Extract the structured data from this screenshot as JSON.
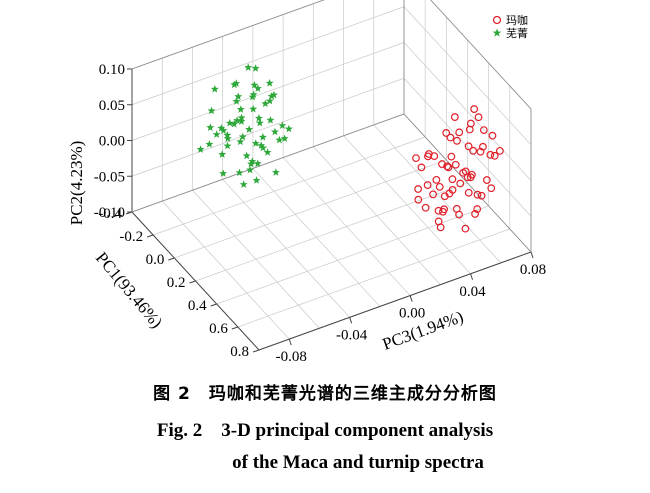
{
  "chart_data": {
    "type": "scatter",
    "dimensions": 3,
    "axes": {
      "pc1": {
        "label": "PC1(93.46%)",
        "range": [
          -0.4,
          0.8
        ],
        "ticks": [
          "-0.4",
          "-0.2",
          "0.0",
          "0.2",
          "0.4",
          "0.6",
          "0.8"
        ]
      },
      "pc2": {
        "label": "PC2(4.23%)",
        "range": [
          -0.1,
          0.1
        ],
        "ticks": [
          "-0.10",
          "-0.05",
          "0.00",
          "0.05",
          "0.10"
        ]
      },
      "pc3": {
        "label": "PC3(1.94%)",
        "range": [
          -0.1,
          0.08
        ],
        "ticks": [
          "-0.08",
          "-0.04",
          "0.00",
          "0.04",
          "0.08"
        ]
      }
    },
    "grid": true,
    "legend_position": "top-right",
    "series": [
      {
        "name": "玛咖",
        "marker": "circle-open",
        "color": "#e0202a",
        "points": [
          [
            0.55,
            0.02,
            0.025
          ],
          [
            0.62,
            0.01,
            0.03
          ],
          [
            0.58,
            -0.01,
            0.035
          ],
          [
            0.66,
            0.03,
            0.04
          ],
          [
            0.6,
            0.05,
            0.045
          ],
          [
            0.7,
            0.0,
            0.03
          ],
          [
            0.52,
            -0.03,
            0.025
          ],
          [
            0.64,
            -0.02,
            0.05
          ],
          [
            0.68,
            0.04,
            0.055
          ],
          [
            0.57,
            0.06,
            0.04
          ],
          [
            0.73,
            0.02,
            0.045
          ],
          [
            0.61,
            -0.04,
            0.035
          ],
          [
            0.59,
            0.0,
            0.02
          ],
          [
            0.65,
            0.07,
            0.05
          ],
          [
            0.71,
            -0.01,
            0.06
          ],
          [
            0.54,
            0.03,
            0.03
          ],
          [
            0.63,
            0.02,
            0.065
          ],
          [
            0.67,
            -0.03,
            0.04
          ],
          [
            0.6,
            0.04,
            0.03
          ],
          [
            0.56,
            -0.02,
            0.05
          ],
          [
            0.69,
            0.05,
            0.035
          ],
          [
            0.62,
            -0.05,
            0.045
          ],
          [
            0.74,
            0.01,
            0.055
          ],
          [
            0.58,
            0.08,
            0.045
          ],
          [
            0.66,
            0.0,
            0.025
          ],
          [
            0.53,
            0.01,
            0.04
          ],
          [
            0.64,
            0.06,
            0.06
          ],
          [
            0.7,
            -0.04,
            0.05
          ],
          [
            0.61,
            0.03,
            0.055
          ],
          [
            0.57,
            -0.06,
            0.035
          ],
          [
            0.68,
            0.02,
            0.02
          ],
          [
            0.72,
            0.04,
            0.065
          ],
          [
            0.55,
            0.05,
            0.05
          ],
          [
            0.63,
            -0.01,
            0.04
          ],
          [
            0.59,
            0.07,
            0.06
          ],
          [
            0.66,
            -0.05,
            0.03
          ],
          [
            0.6,
            0.01,
            0.07
          ],
          [
            0.65,
            0.03,
            0.035
          ],
          [
            0.71,
            0.06,
            0.045
          ],
          [
            0.58,
            -0.04,
            0.06
          ],
          [
            0.52,
            0.0,
            0.045
          ],
          [
            0.67,
            0.01,
            0.05
          ],
          [
            0.62,
            0.05,
            0.025
          ],
          [
            0.69,
            -0.02,
            0.055
          ],
          [
            0.56,
            0.02,
            0.065
          ],
          [
            0.64,
            -0.03,
            0.03
          ],
          [
            0.73,
            0.03,
            0.04
          ],
          [
            0.6,
            -0.02,
            0.04
          ],
          [
            0.66,
            0.08,
            0.05
          ],
          [
            0.57,
            0.04,
            0.02
          ],
          [
            0.63,
            0.0,
            0.05
          ],
          [
            0.7,
            0.02,
            0.035
          ],
          [
            0.54,
            -0.01,
            0.055
          ],
          [
            0.61,
            0.06,
            0.04
          ],
          [
            0.68,
            -0.06,
            0.045
          ],
          [
            0.65,
            0.05,
            0.065
          ],
          [
            0.59,
            -0.03,
            0.025
          ],
          [
            0.72,
            -0.03,
            0.05
          ],
          [
            0.62,
            0.09,
            0.055
          ],
          [
            0.55,
            -0.05,
            0.04
          ]
        ]
      },
      {
        "name": "芜菁",
        "marker": "star",
        "color": "#2ea83a",
        "points": [
          [
            -0.2,
            0.01,
            -0.03
          ],
          [
            -0.15,
            0.03,
            -0.045
          ],
          [
            -0.1,
            -0.01,
            -0.02
          ],
          [
            -0.25,
            0.0,
            -0.05
          ],
          [
            -0.18,
            0.05,
            -0.035
          ],
          [
            -0.05,
            0.02,
            -0.025
          ],
          [
            -0.12,
            -0.03,
            -0.04
          ],
          [
            -0.22,
            0.04,
            -0.06
          ],
          [
            -0.08,
            0.06,
            -0.03
          ],
          [
            -0.28,
            -0.02,
            -0.045
          ],
          [
            -0.14,
            0.0,
            -0.055
          ],
          [
            -0.02,
            0.04,
            -0.035
          ],
          [
            -0.19,
            -0.04,
            -0.025
          ],
          [
            -0.11,
            0.07,
            -0.05
          ],
          [
            -0.24,
            0.02,
            -0.02
          ],
          [
            -0.06,
            -0.02,
            -0.045
          ],
          [
            -0.16,
            0.03,
            -0.065
          ],
          [
            -0.3,
            0.01,
            -0.035
          ],
          [
            -0.09,
            0.01,
            -0.05
          ],
          [
            -0.21,
            -0.01,
            -0.04
          ],
          [
            -0.13,
            0.05,
            -0.025
          ],
          [
            -0.04,
            -0.04,
            -0.03
          ],
          [
            -0.26,
            0.06,
            -0.055
          ],
          [
            -0.17,
            -0.05,
            -0.045
          ],
          [
            -0.07,
            0.03,
            -0.06
          ],
          [
            -0.23,
            -0.03,
            -0.03
          ],
          [
            -0.1,
            0.08,
            -0.04
          ],
          [
            -0.15,
            -0.02,
            -0.02
          ],
          [
            -0.27,
            0.03,
            -0.04
          ],
          [
            -0.03,
            0.0,
            -0.05
          ],
          [
            -0.12,
            0.02,
            -0.035
          ],
          [
            -0.2,
            0.07,
            -0.045
          ],
          [
            -0.08,
            -0.05,
            -0.04
          ],
          [
            -0.18,
            0.0,
            -0.07
          ],
          [
            -0.25,
            -0.04,
            -0.025
          ],
          [
            -0.14,
            0.04,
            -0.03
          ],
          [
            -0.05,
            0.05,
            -0.055
          ],
          [
            -0.22,
            0.01,
            -0.045
          ],
          [
            -0.11,
            -0.03,
            -0.06
          ],
          [
            -0.29,
            0.05,
            -0.04
          ],
          [
            -0.16,
            0.09,
            -0.035
          ],
          [
            -0.06,
            0.01,
            -0.02
          ],
          [
            -0.19,
            0.02,
            -0.05
          ],
          [
            -0.09,
            -0.01,
            -0.035
          ],
          [
            -0.13,
            -0.06,
            -0.045
          ],
          [
            -0.24,
            -0.01,
            -0.06
          ],
          [
            -0.02,
            0.02,
            -0.04
          ],
          [
            -0.17,
            0.06,
            -0.025
          ],
          [
            -0.21,
            0.05,
            -0.03
          ],
          [
            -0.1,
            0.03,
            -0.065
          ],
          [
            -0.27,
            0.0,
            -0.05
          ],
          [
            -0.07,
            -0.03,
            -0.045
          ],
          [
            -0.15,
            0.01,
            -0.04
          ],
          [
            -0.23,
            0.08,
            -0.035
          ],
          [
            -0.12,
            0.0,
            -0.025
          ],
          [
            -0.04,
            0.06,
            -0.045
          ],
          [
            -0.19,
            -0.02,
            -0.055
          ],
          [
            -0.26,
            0.03,
            -0.03
          ],
          [
            -0.08,
            0.04,
            -0.05
          ],
          [
            -0.14,
            -0.04,
            -0.035
          ]
        ]
      }
    ]
  },
  "caption": {
    "cn": "图 2　玛咖和芜菁光谱的三维主成分分析图",
    "en_line1": "Fig. 2　3-D principal component analysis",
    "en_line2": "of the Maca and turnip spectra"
  }
}
